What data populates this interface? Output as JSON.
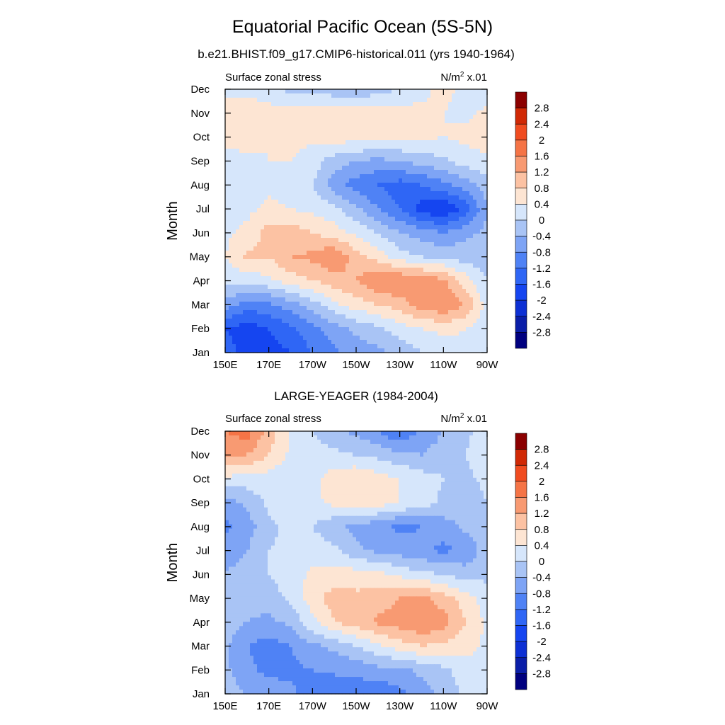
{
  "figure": {
    "title": "Equatorial Pacific Ocean (5S-5N)"
  },
  "chart_data": [
    {
      "type": "heatmap",
      "title": "b.e21.BHIST.f09_g17.CMIP6-historical.011 (yrs 1940-1964)",
      "left_label": "Surface zonal stress",
      "units_label": "N/m",
      "units_sup": "2",
      "units_suffix": " x.01",
      "ylabel": "Month",
      "xlabel": "",
      "x_ticks": [
        "150E",
        "170E",
        "170W",
        "150W",
        "130W",
        "110W",
        "90W"
      ],
      "y_ticks": [
        "Jan",
        "Feb",
        "Mar",
        "Apr",
        "May",
        "Jun",
        "Jul",
        "Aug",
        "Sep",
        "Oct",
        "Nov",
        "Dec"
      ],
      "xlim": [
        150,
        270
      ],
      "x_grid": [
        150,
        160,
        170,
        180,
        190,
        200,
        210,
        220,
        230,
        240,
        250,
        260,
        270
      ],
      "colorbar_labels": [
        "2.8",
        "2.4",
        "2",
        "1.6",
        "1.2",
        "0.8",
        "0.4",
        "0",
        "-0.4",
        "-0.8",
        "-1.2",
        "-1.6",
        "-2",
        "-2.4",
        "-2.8"
      ],
      "values": [
        [
          -1.4,
          -1.8,
          -1.8,
          -1.6,
          -1.2,
          -0.9,
          -0.6,
          -0.5,
          -0.3,
          0.0,
          0.2,
          0.3,
          0.2
        ],
        [
          -1.6,
          -1.8,
          -1.6,
          -1.3,
          -0.9,
          -0.6,
          -0.3,
          -0.1,
          0.2,
          0.4,
          0.5,
          0.4,
          0.2
        ],
        [
          -0.6,
          -1.0,
          -0.9,
          -0.6,
          -0.2,
          0.3,
          0.6,
          0.8,
          1.0,
          1.4,
          1.6,
          1.2,
          0.2
        ],
        [
          0.2,
          0.1,
          0.3,
          0.6,
          0.8,
          1.0,
          1.2,
          1.6,
          1.6,
          1.5,
          1.3,
          0.6,
          0.0
        ],
        [
          0.4,
          0.9,
          0.8,
          1.2,
          1.3,
          1.6,
          1.0,
          0.6,
          0.2,
          0.0,
          -0.1,
          -0.2,
          -0.2
        ],
        [
          0.3,
          0.5,
          1.0,
          1.0,
          0.8,
          0.6,
          0.3,
          0.0,
          -0.4,
          -0.6,
          -0.8,
          -0.5,
          -0.3
        ],
        [
          0.2,
          0.3,
          0.5,
          0.4,
          0.3,
          0.1,
          -0.3,
          -0.8,
          -1.2,
          -1.8,
          -2.0,
          -1.5,
          -0.4
        ],
        [
          0.1,
          0.2,
          0.3,
          0.2,
          0.0,
          -0.6,
          -1.0,
          -1.2,
          -1.4,
          -1.2,
          -0.9,
          -0.6,
          -0.2
        ],
        [
          0.1,
          0.3,
          0.4,
          0.4,
          0.2,
          -0.2,
          -0.4,
          -0.5,
          -0.4,
          -0.2,
          -0.1,
          0.2,
          0.3
        ],
        [
          0.7,
          0.6,
          0.4,
          0.5,
          0.5,
          0.6,
          0.6,
          0.5,
          0.5,
          0.5,
          0.4,
          0.5,
          0.6
        ],
        [
          0.8,
          0.8,
          0.6,
          0.6,
          0.7,
          0.8,
          0.8,
          0.7,
          0.6,
          0.5,
          0.4,
          0.3,
          0.5
        ],
        [
          0.1,
          0.2,
          0.1,
          -0.1,
          -0.2,
          -0.3,
          -0.4,
          -0.2,
          0.0,
          0.3,
          0.5,
          0.3,
          0.1
        ]
      ]
    },
    {
      "type": "heatmap",
      "title": "LARGE-YEAGER (1984-2004)",
      "left_label": "Surface zonal stress",
      "units_label": "N/m",
      "units_sup": "2",
      "units_suffix": " x.01",
      "ylabel": "Month",
      "xlabel": "",
      "x_ticks": [
        "150E",
        "170E",
        "170W",
        "150W",
        "130W",
        "110W",
        "90W"
      ],
      "y_ticks": [
        "Jan",
        "Feb",
        "Mar",
        "Apr",
        "May",
        "Jun",
        "Jul",
        "Aug",
        "Sep",
        "Oct",
        "Nov",
        "Dec"
      ],
      "xlim": [
        150,
        270
      ],
      "x_grid": [
        150,
        160,
        170,
        180,
        190,
        200,
        210,
        220,
        230,
        240,
        250,
        260,
        270
      ],
      "colorbar_labels": [
        "2.8",
        "2.4",
        "2",
        "1.6",
        "1.2",
        "0.8",
        "0.4",
        "0",
        "-0.4",
        "-0.8",
        "-1.2",
        "-1.6",
        "-2",
        "-2.4",
        "-2.8"
      ],
      "values": [
        [
          -0.2,
          -0.4,
          -0.6,
          -0.7,
          -1.0,
          -1.2,
          -1.0,
          -1.2,
          -0.9,
          -0.6,
          -0.3,
          0.1,
          0.2
        ],
        [
          -0.3,
          -0.7,
          -0.9,
          -0.9,
          -0.8,
          -0.7,
          -0.7,
          -0.5,
          -0.5,
          -0.3,
          -0.1,
          0.2,
          0.3
        ],
        [
          -0.3,
          -0.8,
          -1.0,
          -0.8,
          -0.5,
          -0.3,
          0.0,
          0.3,
          0.6,
          0.8,
          0.7,
          0.6,
          0.3
        ],
        [
          -0.2,
          -0.4,
          -0.5,
          -0.3,
          0.3,
          0.8,
          1.0,
          1.3,
          1.4,
          1.6,
          1.4,
          0.8,
          0.3
        ],
        [
          -0.3,
          -0.3,
          -0.2,
          0.1,
          0.6,
          1.0,
          0.9,
          1.0,
          1.2,
          1.3,
          1.0,
          0.6,
          0.2
        ],
        [
          -0.4,
          -0.2,
          0.0,
          0.2,
          0.5,
          0.6,
          0.6,
          0.5,
          0.3,
          0.1,
          0.0,
          -0.2,
          -0.1
        ],
        [
          -0.6,
          -0.4,
          0.0,
          0.1,
          0.2,
          0.1,
          -0.3,
          -0.5,
          -0.6,
          -0.7,
          -0.9,
          -0.7,
          -0.2
        ],
        [
          -0.9,
          -0.6,
          -0.1,
          0.1,
          0.0,
          -0.3,
          -0.5,
          -0.7,
          -0.9,
          -0.8,
          -0.6,
          -0.3,
          -0.1
        ],
        [
          -0.6,
          -0.3,
          0.1,
          0.2,
          0.3,
          0.5,
          0.6,
          0.6,
          0.4,
          0.2,
          -0.1,
          -0.2,
          0.0
        ],
        [
          0.3,
          0.2,
          0.2,
          0.1,
          0.3,
          0.6,
          0.8,
          0.6,
          0.4,
          0.2,
          0.0,
          -0.1,
          0.1
        ],
        [
          1.3,
          1.2,
          0.8,
          0.3,
          0.2,
          0.1,
          0.0,
          -0.1,
          -0.3,
          -0.4,
          -0.2,
          0.0,
          0.2
        ],
        [
          1.6,
          1.8,
          1.0,
          0.4,
          0.0,
          -0.3,
          -0.5,
          -0.8,
          -1.2,
          -0.7,
          -0.4,
          -0.1,
          0.2
        ]
      ]
    }
  ]
}
